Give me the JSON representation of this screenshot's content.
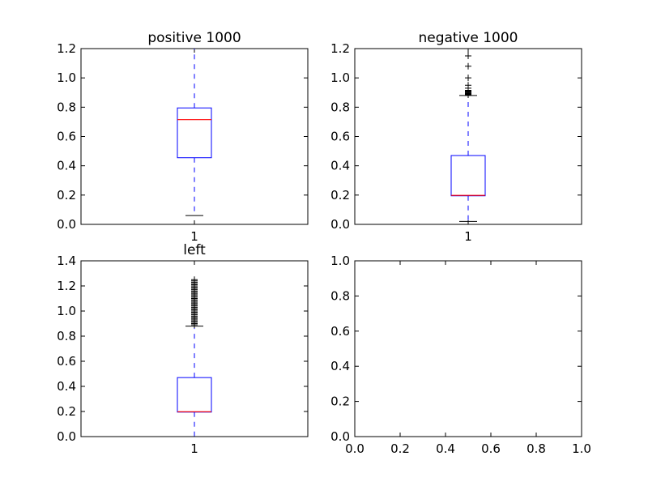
{
  "figure": {
    "background": "#ffffff"
  },
  "chart_data": [
    {
      "type": "box",
      "title": "positive 1000",
      "categories": [
        "1"
      ],
      "ylim": [
        0,
        1.2
      ],
      "yticks": [
        "0.0",
        "0.2",
        "0.4",
        "0.6",
        "0.8",
        "1.0",
        "1.2"
      ],
      "box": {
        "whisker_low": 0.06,
        "q1": 0.455,
        "median": 0.715,
        "q3": 0.795,
        "whisker_high": 1.2
      },
      "outliers": [],
      "colors": {
        "box": "#0000ff",
        "median": "#ff0000",
        "whisker": "#0000ff",
        "cap": "#000000",
        "flier": "#000000"
      }
    },
    {
      "type": "box",
      "title": "negative 1000",
      "categories": [
        "1"
      ],
      "ylim": [
        0,
        1.2
      ],
      "yticks": [
        "0.0",
        "0.2",
        "0.4",
        "0.6",
        "0.8",
        "1.0",
        "1.2"
      ],
      "box": {
        "whisker_low": 0.02,
        "q1": 0.195,
        "median": 0.198,
        "q3": 0.47,
        "whisker_high": 0.88
      },
      "outliers": [
        0.885,
        0.89,
        0.895,
        0.9,
        0.905,
        0.91,
        0.915,
        0.93,
        0.95,
        1.0,
        1.08,
        1.15
      ],
      "colors": {
        "box": "#0000ff",
        "median": "#ff0000",
        "whisker": "#0000ff",
        "cap": "#000000",
        "flier": "#000000"
      }
    },
    {
      "type": "box",
      "title": "left",
      "categories": [
        "1"
      ],
      "ylim": [
        0,
        1.4
      ],
      "yticks": [
        "0.0",
        "0.2",
        "0.4",
        "0.6",
        "0.8",
        "1.0",
        "1.2",
        "1.4"
      ],
      "box": {
        "whisker_low": 0.0,
        "q1": 0.195,
        "median": 0.198,
        "q3": 0.47,
        "whisker_high": 0.88
      },
      "outliers": [
        0.89,
        0.9,
        0.91,
        0.92,
        0.93,
        0.94,
        0.95,
        0.96,
        0.97,
        0.98,
        0.99,
        1.0,
        1.01,
        1.02,
        1.03,
        1.04,
        1.05,
        1.06,
        1.07,
        1.08,
        1.09,
        1.1,
        1.11,
        1.12,
        1.13,
        1.14,
        1.15,
        1.16,
        1.17,
        1.18,
        1.19,
        1.2,
        1.21,
        1.22,
        1.23,
        1.24,
        1.25
      ],
      "colors": {
        "box": "#0000ff",
        "median": "#ff0000",
        "whisker": "#0000ff",
        "cap": "#000000",
        "flier": "#000000"
      }
    },
    {
      "type": "empty",
      "title": "",
      "xlim": [
        0,
        1
      ],
      "ylim": [
        0,
        1
      ],
      "xticks": [
        "0.0",
        "0.2",
        "0.4",
        "0.6",
        "0.8",
        "1.0"
      ],
      "yticks": [
        "0.0",
        "0.2",
        "0.4",
        "0.6",
        "0.8",
        "1.0"
      ]
    }
  ]
}
